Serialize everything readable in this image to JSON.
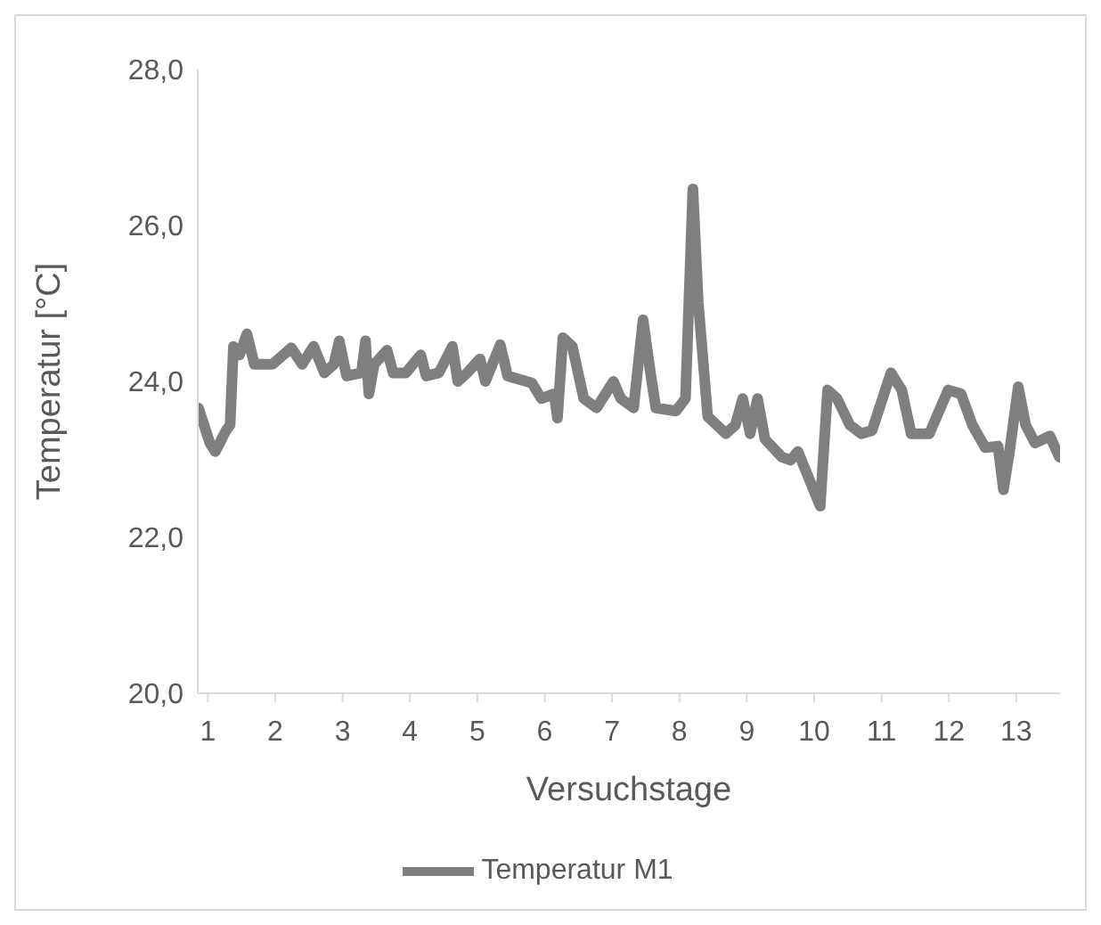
{
  "chart_data": {
    "type": "line",
    "xlabel": "Versuchstage",
    "ylabel": "Temperatur [°C]",
    "xlim": [
      0.85,
      13.65
    ],
    "xticks": [
      1,
      2,
      3,
      4,
      5,
      6,
      7,
      8,
      9,
      10,
      11,
      12,
      13
    ],
    "ylim": [
      20,
      28
    ],
    "yticks": [
      {
        "value": 20,
        "label": "20,0"
      },
      {
        "value": 22,
        "label": "22,0"
      },
      {
        "value": 24,
        "label": "24,0"
      },
      {
        "value": 26,
        "label": "26,0"
      },
      {
        "value": 28,
        "label": "28,0"
      }
    ],
    "grid": false,
    "legend": "bottom",
    "marker": "none",
    "line_style": "solid",
    "x": [
      0.86,
      1.03,
      1.11,
      1.27,
      1.33,
      1.38,
      1.47,
      1.58,
      1.69,
      1.96,
      2.24,
      2.4,
      2.57,
      2.73,
      2.87,
      2.95,
      3.06,
      3.28,
      3.34,
      3.39,
      3.47,
      3.66,
      3.75,
      3.94,
      4.16,
      4.24,
      4.43,
      4.63,
      4.71,
      4.85,
      5.04,
      5.12,
      5.34,
      5.45,
      5.81,
      5.95,
      6.14,
      6.19,
      6.27,
      6.41,
      6.58,
      6.77,
      7.02,
      7.13,
      7.32,
      7.46,
      7.57,
      7.65,
      7.95,
      8.09,
      8.2,
      8.28,
      8.42,
      8.69,
      8.83,
      8.94,
      9.05,
      9.16,
      9.27,
      9.52,
      9.65,
      9.76,
      10.09,
      10.2,
      10.34,
      10.53,
      10.7,
      10.86,
      11.14,
      11.3,
      11.44,
      11.71,
      11.99,
      12.18,
      12.35,
      12.54,
      12.73,
      12.81,
      12.9,
      13.03,
      13.14,
      13.28,
      13.5,
      13.64
    ],
    "series": [
      {
        "name": "Temperatur M1",
        "color": "#7f7f7f",
        "values": [
          23.66,
          23.21,
          23.1,
          23.37,
          23.44,
          24.45,
          24.34,
          24.61,
          24.22,
          24.22,
          24.43,
          24.22,
          24.45,
          24.11,
          24.22,
          24.52,
          24.07,
          24.11,
          24.52,
          23.84,
          24.22,
          24.4,
          24.11,
          24.11,
          24.34,
          24.07,
          24.11,
          24.45,
          24.0,
          24.11,
          24.29,
          24.0,
          24.47,
          24.07,
          23.98,
          23.78,
          23.84,
          23.53,
          24.56,
          24.45,
          23.78,
          23.66,
          24.0,
          23.78,
          23.66,
          24.79,
          24.11,
          23.66,
          23.62,
          23.78,
          26.47,
          25.01,
          23.55,
          23.33,
          23.44,
          23.78,
          23.33,
          23.78,
          23.26,
          23.03,
          22.99,
          23.1,
          22.4,
          23.89,
          23.78,
          23.44,
          23.33,
          23.37,
          24.11,
          23.89,
          23.33,
          23.33,
          23.89,
          23.84,
          23.44,
          23.15,
          23.17,
          22.61,
          23.1,
          23.93,
          23.44,
          23.21,
          23.3,
          23.03
        ]
      }
    ]
  }
}
